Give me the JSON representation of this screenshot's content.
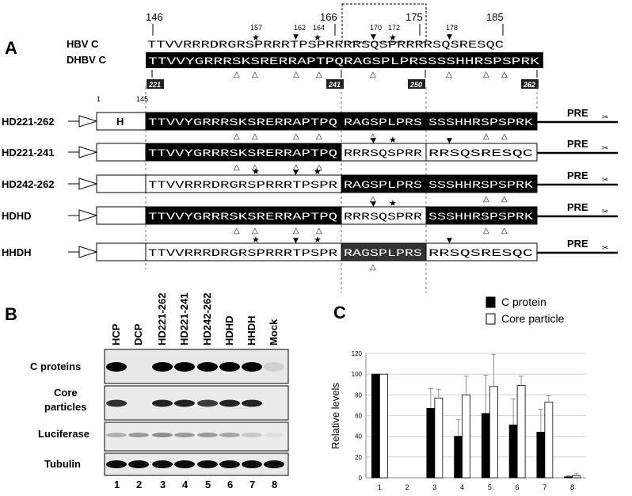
{
  "panels": {
    "a": "A",
    "b": "B",
    "c": "C"
  },
  "panel_a": {
    "top_positions": [
      "146",
      "166",
      "175",
      "185"
    ],
    "site_numbers": [
      "157",
      "162",
      "164",
      "170",
      "172",
      "178"
    ],
    "hbv_label": "HBV C",
    "dhbv_label": "DHBV C",
    "hbv_seq": "TTVVRRRDRGRSPRRRTPSPRRRRSQSPRRRRSQSRESQC",
    "dhbv_seq": "TTVVYGRRRSKSRERRAPTPQRAGSPLPRSSSSHHRSPSPRK",
    "boundary_numbers": [
      "221",
      "241",
      "250",
      "262"
    ],
    "scale_numbers": [
      "1",
      "145"
    ],
    "h_box": "H",
    "pre": "PRE",
    "constructs": [
      {
        "name": "HD221-262",
        "left": "TTVVYGRRRSKSRERRAPTPQ",
        "mid": "RAGSPLPRS",
        "right": "SSSHHRSPSPRK"
      },
      {
        "name": "HD221-241",
        "left": "TTVVYGRRRSKSRERRAPTPQ",
        "mid": "RRRSQSPRR",
        "right": "RRSQSRESQC"
      },
      {
        "name": "HD242-262",
        "left": "TTVVRRRDRGRSPRRRTPSPR",
        "mid": "RAGSPLPRS",
        "right": "SSSHHRSPSPRK"
      },
      {
        "name": "HDHD",
        "left": "TTVVYGRRRSKSRERRAPTPQ",
        "mid": "RRRSQSPRR",
        "right": "SSSHHRSPSPRK"
      },
      {
        "name": "HHDH",
        "left": "TTVVRRRDRGRSPRRRTPSPR",
        "mid": "RAGSPLPRS",
        "right": "RRSQSRESQC"
      }
    ]
  },
  "panel_b": {
    "lanes": [
      "HCP",
      "DCP",
      "HD221-262",
      "HD221-241",
      "HD242-262",
      "HDHD",
      "HHDH",
      "Mock"
    ],
    "rows": [
      "C proteins",
      "Core\nparticles",
      "Luciferase",
      "Tubulin"
    ],
    "row_label_1": "C proteins",
    "row_label_2a": "Core",
    "row_label_2b": "particles",
    "row_label_3": "Luciferase",
    "row_label_4": "Tubulin",
    "lane_numbers": [
      "1",
      "2",
      "3",
      "4",
      "5",
      "6",
      "7",
      "8"
    ]
  },
  "chart_data": {
    "type": "bar",
    "title": "",
    "ylabel": "Relative levels",
    "xlabel": "",
    "categories": [
      "1",
      "2",
      "3",
      "4",
      "5",
      "6",
      "7",
      "8"
    ],
    "ylim": [
      0,
      120
    ],
    "yticks": [
      0,
      20,
      40,
      60,
      80,
      100,
      120
    ],
    "legend_position": "top-right",
    "grid": true,
    "series": [
      {
        "name": "C protein",
        "color": "#000000",
        "values": [
          100,
          0,
          67,
          40,
          62,
          51,
          44,
          1
        ],
        "errors": [
          0,
          0,
          19,
          16,
          37,
          25,
          22,
          1
        ]
      },
      {
        "name": "Core particle",
        "color": "#ffffff",
        "values": [
          100,
          0,
          77,
          80,
          88,
          89,
          73,
          2
        ],
        "errors": [
          0,
          0,
          8,
          18,
          31,
          9,
          6,
          2
        ]
      }
    ]
  }
}
